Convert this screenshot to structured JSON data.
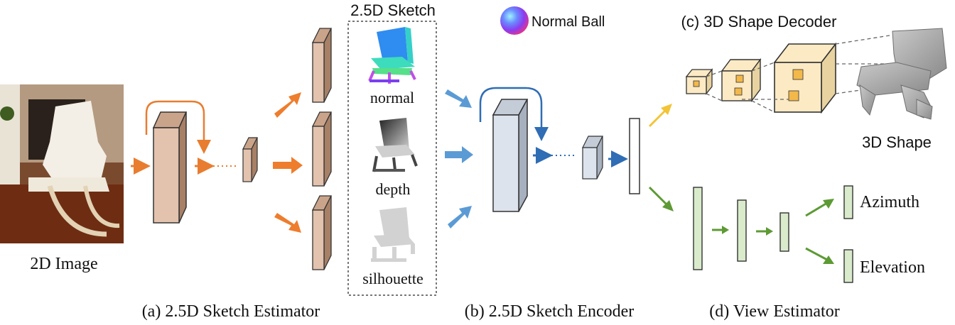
{
  "labels": {
    "input_image": "2D Image",
    "sketch_group_title": "2.5D Sketch",
    "normal": "normal",
    "depth": "depth",
    "silhouette": "silhouette",
    "normal_ball": "Normal Ball",
    "shape_decoder": "(c) 3D Shape Decoder",
    "shape_output": "3D Shape",
    "azimuth": "Azimuth",
    "elevation": "Elevation",
    "caption_a": "(a) 2.5D Sketch Estimator",
    "caption_b": "(b) 2.5D Sketch Encoder",
    "caption_d": "(d) View Estimator"
  },
  "colors": {
    "estimator_orange": "#e87d30",
    "estimator_block": "#e3c3ae",
    "encoder_blue": "#5b9bd5",
    "encoder_block": "#dde3ec",
    "view_green": "#5d9a34",
    "view_block": "#d9ebcb",
    "decoder_yellow": "#f3c437",
    "voxel_cube": "#fbeac4"
  }
}
